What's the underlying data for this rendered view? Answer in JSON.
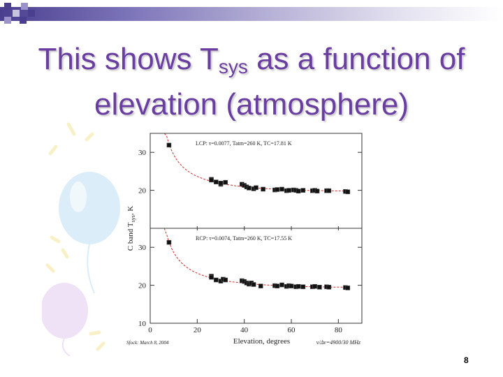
{
  "slide": {
    "title_pre": "This shows T",
    "title_sub": "sys",
    "title_post": " as a function of elevation (atmosphere)",
    "page_number": "8"
  },
  "colors": {
    "title": "#6a3ea0",
    "fit_curve": "#cc2a2a",
    "points": "#111111"
  },
  "decor": {
    "squares_icon": "purple-squares-icon",
    "balloons_icon": "balloons-icon"
  },
  "chart_data": {
    "type": "scatter",
    "xlabel": "Elevation, degrees",
    "ylabel": "C band T_sys, K",
    "ylabel_parts": {
      "pre": "C band T",
      "sub": "sys",
      "post": ", K"
    },
    "xlim": [
      0,
      90
    ],
    "x_ticks": [
      0,
      20,
      40,
      60,
      80
    ],
    "footer_left": "Sfock: March 8, 2004",
    "footer_right": "ν/Δν=4900/30 MHz",
    "panels": [
      {
        "name": "LCP",
        "annotation": "LCP: τ=0.0077, Tatm=260 K, TC=17.81 K",
        "ylim": [
          10,
          35
        ],
        "y_ticks": [
          20,
          30
        ],
        "tau": 0.0077,
        "t_atm": 260,
        "t_c": 17.81,
        "x": [
          8,
          26,
          26,
          28,
          30,
          30,
          32,
          39,
          40,
          41,
          42,
          44,
          45,
          48,
          53,
          54,
          56,
          58,
          59,
          61,
          62,
          63,
          65,
          69,
          70,
          71,
          75,
          76,
          83,
          84
        ],
        "y": [
          31.9,
          22.9,
          22.7,
          22.2,
          21.6,
          21.9,
          22.1,
          21.6,
          21.3,
          20.9,
          20.6,
          20.4,
          20.7,
          20.3,
          20.1,
          20.2,
          20.3,
          19.9,
          20.0,
          20.1,
          20.0,
          19.8,
          20.0,
          19.9,
          20.0,
          19.8,
          19.9,
          19.9,
          19.7,
          19.6
        ]
      },
      {
        "name": "RCP",
        "annotation": "RCP: τ=0.0074, Tatm=260 K, TC=17.55 K",
        "ylim": [
          10,
          35
        ],
        "y_ticks": [
          10,
          20,
          30
        ],
        "tau": 0.0074,
        "t_atm": 260,
        "t_c": 17.55,
        "x": [
          8,
          26,
          26,
          28,
          30,
          31,
          32,
          39,
          40,
          41,
          42,
          43,
          44,
          47,
          53,
          54,
          56,
          58,
          59,
          60,
          62,
          63,
          65,
          69,
          70,
          72,
          75,
          76,
          83,
          84
        ],
        "y": [
          31.3,
          22.4,
          22.1,
          21.4,
          21.1,
          21.6,
          21.4,
          21.2,
          21.0,
          20.6,
          20.3,
          20.6,
          20.2,
          19.8,
          19.9,
          19.8,
          20.1,
          19.7,
          19.9,
          19.8,
          19.6,
          19.7,
          19.6,
          19.6,
          19.7,
          19.5,
          19.6,
          19.5,
          19.4,
          19.3
        ]
      }
    ]
  }
}
